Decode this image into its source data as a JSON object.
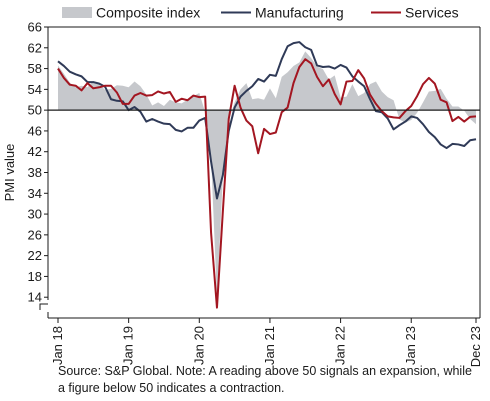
{
  "chart_data": {
    "type": "line",
    "ylabel": "PMI value",
    "ylim": [
      10,
      66
    ],
    "yticks": [
      14,
      18,
      22,
      26,
      30,
      34,
      38,
      42,
      46,
      50,
      54,
      58,
      62,
      66
    ],
    "reference_line": 50,
    "axis_break": true,
    "grid": false,
    "legend_position": "top",
    "x_start": "Jan 18",
    "x_end": "Dec 23",
    "x_tick_labels": [
      {
        "label": "Jan 18",
        "month_index": 0
      },
      {
        "label": "Jan 19",
        "month_index": 12
      },
      {
        "label": "Jan 20",
        "month_index": 24
      },
      {
        "label": "Jan 21",
        "month_index": 36
      },
      {
        "label": "Jan 22",
        "month_index": 48
      },
      {
        "label": "Jan 23",
        "month_index": 60
      },
      {
        "label": "Dec 23",
        "month_index": 71
      }
    ],
    "series": [
      {
        "name": "Composite index",
        "style": "area",
        "color": "#c6c8cc",
        "values": [
          58.6,
          57.0,
          55.3,
          54.4,
          54.7,
          54.4,
          55.6,
          54.9,
          53.9,
          54.1,
          54.8,
          54.7,
          54.4,
          55.5,
          54.6,
          53.0,
          50.9,
          51.5,
          50.8,
          52.0,
          51.5,
          51.3,
          52.0,
          52.7,
          53.3,
          49.6,
          40.9,
          13.8,
          37.0,
          48.0,
          51.5,
          54.0,
          55.2,
          52.1,
          52.3,
          52.0,
          54.2,
          52.3,
          56.4,
          57.3,
          58.5,
          59.2,
          61.3,
          60.0,
          58.4,
          57.9,
          55.9,
          56.7,
          52.4,
          52.6,
          55.0,
          52.7,
          53.3,
          55.0,
          55.5,
          53.6,
          52.5,
          51.9,
          48.2,
          47.6,
          48.1,
          49.5,
          51.5,
          53.6,
          53.7,
          54.1,
          52.2,
          50.7,
          50.7,
          49.9,
          48.3,
          47.3
        ]
      },
      {
        "name": "Manufacturing",
        "style": "line",
        "color": "#2f3a57",
        "values": [
          59.4,
          58.5,
          57.4,
          56.9,
          56.5,
          55.4,
          55.4,
          55.1,
          54.5,
          52.1,
          51.8,
          51.7,
          50.0,
          50.6,
          49.7,
          47.8,
          48.3,
          47.8,
          47.4,
          47.3,
          46.2,
          45.9,
          46.6,
          46.6,
          48.0,
          48.5,
          40.1,
          33.0,
          37.5,
          46.0,
          50.5,
          52.6,
          53.7,
          54.6,
          56.0,
          55.5,
          56.8,
          56.6,
          59.8,
          62.3,
          62.9,
          63.1,
          62.1,
          61.6,
          58.6,
          58.3,
          58.4,
          58.0,
          58.7,
          58.2,
          56.5,
          55.5,
          54.6,
          52.1,
          49.8,
          49.6,
          48.4,
          46.3,
          47.1,
          47.8,
          48.8,
          48.5,
          47.3,
          45.8,
          44.8,
          43.4,
          42.7,
          43.5,
          43.4,
          43.1,
          44.2,
          44.4
        ]
      },
      {
        "name": "Services",
        "style": "line",
        "color": "#a31621",
        "values": [
          58.0,
          56.2,
          54.9,
          54.7,
          53.8,
          55.2,
          54.2,
          54.4,
          54.7,
          54.7,
          53.4,
          51.2,
          51.2,
          52.8,
          53.3,
          52.8,
          52.9,
          53.6,
          53.2,
          53.5,
          51.6,
          52.2,
          51.9,
          52.8,
          52.5,
          52.6,
          26.4,
          12.0,
          30.5,
          48.3,
          54.7,
          50.5,
          48.0,
          46.9,
          41.7,
          46.4,
          45.4,
          45.7,
          49.6,
          50.5,
          55.2,
          58.3,
          59.8,
          59.0,
          56.4,
          54.6,
          55.9,
          53.1,
          51.1,
          55.5,
          55.6,
          57.7,
          56.1,
          53.0,
          51.2,
          49.8,
          48.8,
          48.6,
          48.5,
          49.8,
          50.8,
          52.7,
          55.0,
          56.2,
          55.1,
          52.0,
          51.5,
          47.9,
          48.7,
          47.8,
          48.7,
          48.8
        ]
      }
    ]
  },
  "source_note": "Source: S&P Global. Note: A reading above 50 signals an expansion, while a figure below 50 indicates a contraction."
}
